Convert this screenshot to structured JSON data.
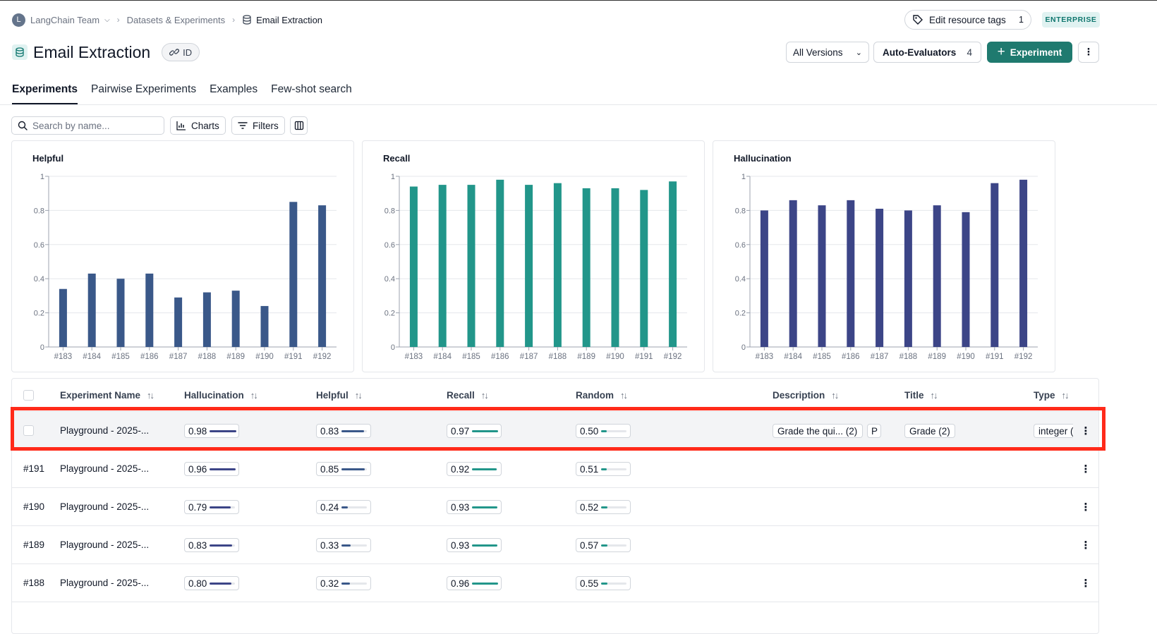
{
  "breadcrumb": {
    "avatar_letter": "L",
    "team": "LangChain Team",
    "datasets": "Datasets & Experiments",
    "current": "Email Extraction"
  },
  "header": {
    "title": "Email Extraction",
    "id_label": "ID",
    "edit_tags_label": "Edit resource tags",
    "edit_tags_count": "1",
    "enterprise_badge": "ENTERPRISE",
    "versions_label": "All Versions",
    "auto_evaluators_label": "Auto-Evaluators",
    "auto_evaluators_count": "4",
    "experiment_button": "Experiment"
  },
  "tabs": [
    {
      "label": "Experiments",
      "active": true
    },
    {
      "label": "Pairwise Experiments",
      "active": false
    },
    {
      "label": "Examples",
      "active": false
    },
    {
      "label": "Few-shot search",
      "active": false
    }
  ],
  "toolbar": {
    "search_placeholder": "Search by name...",
    "charts_label": "Charts",
    "filters_label": "Filters"
  },
  "colors": {
    "helpful": "#3a5889",
    "recall": "#22968a",
    "hallucination": "#3c4587",
    "accent": "#1f7a6f",
    "highlight": "#ff2a1a"
  },
  "chart_data": [
    {
      "type": "bar",
      "title": "Helpful",
      "categories": [
        "#183",
        "#184",
        "#185",
        "#186",
        "#187",
        "#188",
        "#189",
        "#190",
        "#191",
        "#192"
      ],
      "values": [
        0.34,
        0.43,
        0.4,
        0.43,
        0.29,
        0.32,
        0.33,
        0.24,
        0.85,
        0.83
      ],
      "ylim": [
        0,
        1
      ],
      "yticks": [
        "0",
        "0.2",
        "0.4",
        "0.6",
        "0.8",
        "1"
      ],
      "color": "#3a5889"
    },
    {
      "type": "bar",
      "title": "Recall",
      "categories": [
        "#183",
        "#184",
        "#185",
        "#186",
        "#187",
        "#188",
        "#189",
        "#190",
        "#191",
        "#192"
      ],
      "values": [
        0.94,
        0.95,
        0.95,
        0.98,
        0.95,
        0.96,
        0.93,
        0.93,
        0.92,
        0.97
      ],
      "ylim": [
        0,
        1
      ],
      "yticks": [
        "0",
        "0.2",
        "0.4",
        "0.6",
        "0.8",
        "1"
      ],
      "color": "#22968a"
    },
    {
      "type": "bar",
      "title": "Hallucination",
      "categories": [
        "#183",
        "#184",
        "#185",
        "#186",
        "#187",
        "#188",
        "#189",
        "#190",
        "#191",
        "#192"
      ],
      "values": [
        0.8,
        0.86,
        0.83,
        0.86,
        0.81,
        0.8,
        0.83,
        0.79,
        0.96,
        0.98
      ],
      "ylim": [
        0,
        1
      ],
      "yticks": [
        "0",
        "0.2",
        "0.4",
        "0.6",
        "0.8",
        "1"
      ],
      "color": "#3c4587"
    }
  ],
  "table": {
    "columns": [
      "Experiment Name",
      "Hallucination",
      "Helpful",
      "Recall",
      "Random",
      "Description",
      "Title",
      "Type"
    ],
    "rows": [
      {
        "id": "",
        "name": "Playground - 2025-...",
        "hallucination": "0.98",
        "helpful": "0.83",
        "recall": "0.97",
        "random": "0.50",
        "hallucination_frac": 0.98,
        "helpful_frac": 0.83,
        "recall_frac": 0.97,
        "random_frac": 0.5,
        "description": "Grade the qui... (2)",
        "description_extra": "P",
        "title": "Grade (2)",
        "type": "integer (",
        "selected": true
      },
      {
        "id": "#191",
        "name": "Playground - 2025-...",
        "hallucination": "0.96",
        "helpful": "0.85",
        "recall": "0.92",
        "random": "0.51",
        "hallucination_frac": 0.96,
        "helpful_frac": 0.85,
        "recall_frac": 0.92,
        "random_frac": 0.51,
        "description": "",
        "description_extra": "",
        "title": "",
        "type": "",
        "selected": false
      },
      {
        "id": "#190",
        "name": "Playground - 2025-...",
        "hallucination": "0.79",
        "helpful": "0.24",
        "recall": "0.93",
        "random": "0.52",
        "hallucination_frac": 0.79,
        "helpful_frac": 0.24,
        "recall_frac": 0.93,
        "random_frac": 0.52,
        "description": "",
        "description_extra": "",
        "title": "",
        "type": "",
        "selected": false
      },
      {
        "id": "#189",
        "name": "Playground - 2025-...",
        "hallucination": "0.83",
        "helpful": "0.33",
        "recall": "0.93",
        "random": "0.57",
        "hallucination_frac": 0.83,
        "helpful_frac": 0.33,
        "recall_frac": 0.93,
        "random_frac": 0.57,
        "description": "",
        "description_extra": "",
        "title": "",
        "type": "",
        "selected": false
      },
      {
        "id": "#188",
        "name": "Playground - 2025-...",
        "hallucination": "0.80",
        "helpful": "0.32",
        "recall": "0.96",
        "random": "0.55",
        "hallucination_frac": 0.8,
        "helpful_frac": 0.32,
        "recall_frac": 0.96,
        "random_frac": 0.55,
        "description": "",
        "description_extra": "",
        "title": "",
        "type": "",
        "selected": false
      }
    ]
  }
}
